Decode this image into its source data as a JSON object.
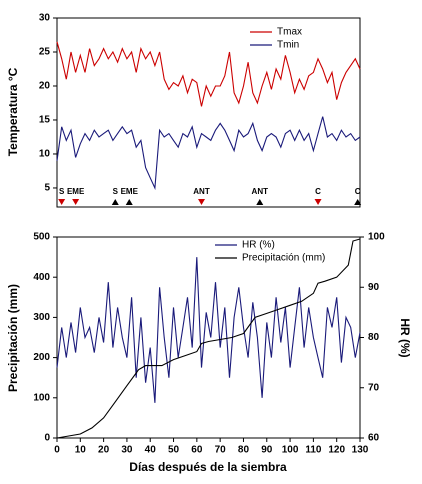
{
  "chart_data": [
    {
      "type": "line",
      "ylabel": "Temperatura °C",
      "xlim": [
        0,
        130
      ],
      "ylim": [
        2.2,
        30
      ],
      "yticks": [
        5,
        10,
        15,
        20,
        25,
        30
      ],
      "legend": "upper right",
      "x": [
        0,
        2,
        4,
        6,
        8,
        10,
        12,
        14,
        16,
        18,
        20,
        22,
        24,
        26,
        28,
        30,
        32,
        34,
        36,
        38,
        40,
        42,
        44,
        46,
        48,
        50,
        52,
        54,
        56,
        58,
        60,
        62,
        64,
        66,
        68,
        70,
        72,
        74,
        76,
        78,
        80,
        82,
        84,
        86,
        88,
        90,
        92,
        94,
        96,
        98,
        100,
        102,
        104,
        106,
        108,
        110,
        112,
        114,
        116,
        118,
        120,
        122,
        124,
        126,
        128,
        130
      ],
      "series": [
        {
          "name": "Tmax",
          "color": "#cc0000",
          "values": [
            26.5,
            24,
            21,
            25,
            22,
            24.5,
            22,
            25.5,
            23,
            24,
            25.5,
            24,
            25,
            23.5,
            25.5,
            24,
            25,
            22,
            25.5,
            24,
            25,
            23,
            25,
            21,
            19.5,
            20.5,
            20,
            21.5,
            19,
            21,
            20.5,
            17,
            20,
            18.5,
            20,
            20,
            21.5,
            25,
            19,
            17.5,
            20,
            23.5,
            19,
            17.5,
            20,
            22,
            19.5,
            22.5,
            21,
            24.5,
            22,
            19,
            21,
            19.5,
            21.5,
            22,
            24,
            22.5,
            20.5,
            22,
            18,
            20.5,
            22,
            23,
            24,
            22.5
          ]
        },
        {
          "name": "Tmin",
          "color": "#1a1a7a",
          "values": [
            9,
            14,
            12,
            13.5,
            9.5,
            11.5,
            13,
            12,
            13.5,
            12.5,
            13,
            13.5,
            12,
            13,
            14,
            13,
            13.5,
            11,
            12,
            8,
            6.5,
            5,
            13.5,
            12.5,
            13,
            12,
            11,
            13,
            12.5,
            14,
            11,
            13,
            12.5,
            12,
            13.5,
            14.5,
            13.5,
            12,
            10.5,
            13.5,
            12.5,
            13,
            14.5,
            12,
            10.5,
            12.5,
            13,
            12.5,
            11,
            13,
            13.5,
            12,
            13.5,
            12,
            13,
            10.5,
            13,
            15.5,
            12.5,
            13,
            12,
            13.5,
            12.5,
            13,
            12,
            12.5
          ]
        }
      ],
      "annotations": [
        {
          "label": "S",
          "x": 2,
          "color": "#cc0000",
          "marker": "down"
        },
        {
          "label": "EME",
          "x": 8,
          "color": "#cc0000",
          "marker": "down"
        },
        {
          "label": "S",
          "x": 25,
          "color": "#000000",
          "marker": "up"
        },
        {
          "label": "EME",
          "x": 31,
          "color": "#000000",
          "marker": "up"
        },
        {
          "label": "ANT",
          "x": 62,
          "color": "#cc0000",
          "marker": "down"
        },
        {
          "label": "ANT",
          "x": 87,
          "color": "#000000",
          "marker": "up"
        },
        {
          "label": "C",
          "x": 112,
          "color": "#cc0000",
          "marker": "down"
        },
        {
          "label": "C",
          "x": 129,
          "color": "#000000",
          "marker": "up"
        }
      ]
    },
    {
      "type": "line",
      "xlabel": "Días después de la siembra",
      "ylabel": "Precipitación (mm)",
      "y2label": "HR (%)",
      "xlim": [
        0,
        130
      ],
      "xticks": [
        0,
        10,
        20,
        30,
        40,
        50,
        60,
        70,
        80,
        90,
        100,
        110,
        120,
        130
      ],
      "ylim": [
        0,
        500
      ],
      "yticks": [
        0,
        100,
        200,
        300,
        400,
        500
      ],
      "y2lim": [
        60,
        100
      ],
      "y2ticks": [
        60,
        70,
        80,
        90,
        100
      ],
      "legend": "upper center",
      "series": [
        {
          "name": "HR (%)",
          "color": "#1a1a7a",
          "axis": "y2",
          "x": [
            0,
            2,
            4,
            6,
            8,
            10,
            12,
            14,
            16,
            18,
            20,
            22,
            24,
            26,
            28,
            30,
            32,
            34,
            36,
            38,
            40,
            42,
            44,
            46,
            48,
            50,
            52,
            54,
            56,
            58,
            60,
            62,
            64,
            66,
            68,
            70,
            72,
            74,
            76,
            78,
            80,
            82,
            84,
            86,
            88,
            90,
            92,
            94,
            96,
            98,
            100,
            102,
            104,
            106,
            108,
            110,
            112,
            114,
            116,
            118,
            120,
            122,
            124,
            126,
            128,
            130
          ],
          "values": [
            74,
            82,
            76,
            83,
            77,
            86,
            80,
            82,
            77,
            84,
            79,
            91,
            78,
            86,
            80,
            76,
            88,
            72,
            84,
            71,
            78,
            67,
            90,
            80,
            72,
            86,
            76,
            82,
            88,
            78,
            96,
            74,
            85,
            80,
            91,
            78,
            86,
            72,
            84,
            90,
            82,
            76,
            87,
            80,
            68,
            83,
            76,
            88,
            79,
            86,
            74,
            82,
            90,
            78,
            86,
            80,
            76,
            72,
            86,
            82,
            88,
            75,
            84,
            82,
            76,
            81
          ]
        },
        {
          "name": "Precipitación (mm)",
          "color": "#000000",
          "x": [
            0,
            5,
            10,
            15,
            20,
            25,
            30,
            35,
            38,
            40,
            45,
            50,
            55,
            60,
            62,
            65,
            70,
            75,
            80,
            85,
            90,
            95,
            100,
            105,
            110,
            112,
            115,
            120,
            125,
            127,
            130
          ],
          "values": [
            0,
            5,
            10,
            25,
            50,
            90,
            130,
            170,
            180,
            180,
            180,
            195,
            205,
            215,
            235,
            240,
            245,
            250,
            260,
            300,
            310,
            320,
            330,
            340,
            360,
            385,
            390,
            400,
            430,
            490,
            495
          ]
        }
      ]
    }
  ]
}
